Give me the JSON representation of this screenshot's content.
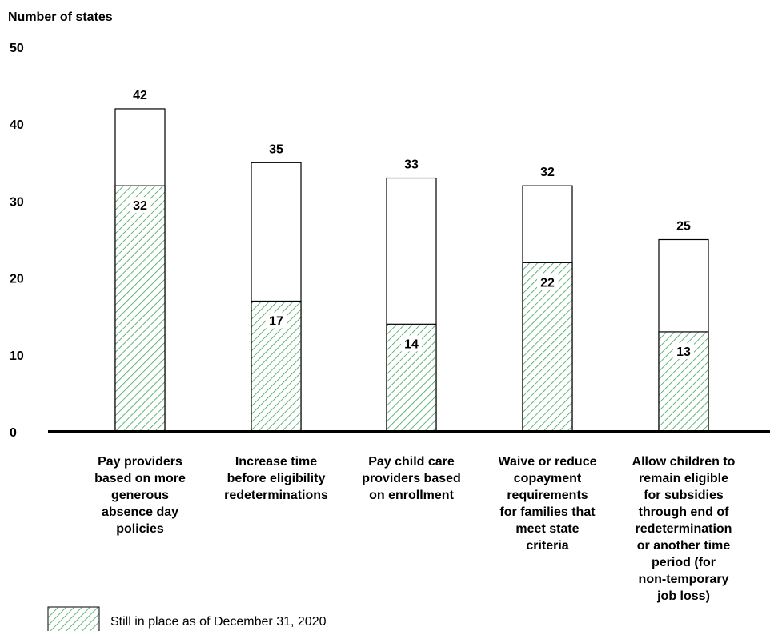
{
  "chart_data": {
    "type": "bar",
    "ylabel": "Number of states",
    "ylim": [
      0,
      50
    ],
    "yticks": [
      0,
      10,
      20,
      30,
      40,
      50
    ],
    "categories": [
      "Pay providers based on more generous absence day policies",
      "Increase time before eligibility redeterminations",
      "Pay child care providers based on enrollment",
      "Waive or reduce copayment requirements for families that meet state criteria",
      "Allow children to remain eligible for subsidies through end of redetermination or another time period (for non-temporary job loss)"
    ],
    "category_lines": [
      [
        "Pay providers",
        "based on more",
        "generous",
        "absence day",
        "policies"
      ],
      [
        "Increase time",
        "before eligibility",
        "redeterminations"
      ],
      [
        "Pay child care",
        "providers based",
        "on enrollment"
      ],
      [
        "Waive or reduce",
        "copayment",
        "requirements",
        "for families that",
        "meet state",
        "criteria"
      ],
      [
        "Allow children to",
        "remain eligible",
        "for subsidies",
        "through end of",
        "redetermination",
        "or another time",
        "period (for",
        "non-temporary",
        "job loss)"
      ]
    ],
    "series": [
      {
        "name": "Still in place as of December 31, 2020",
        "values": [
          32,
          17,
          14,
          22,
          13
        ]
      }
    ],
    "totals": [
      42,
      35,
      33,
      32,
      25
    ],
    "legend": {
      "placement": "bottom-left",
      "entries": [
        "Still in place as of December 31, 2020"
      ]
    },
    "grid": false,
    "colors": {
      "hatch": "#3aa35a",
      "outline": "#000000",
      "axis": "#000000"
    }
  }
}
